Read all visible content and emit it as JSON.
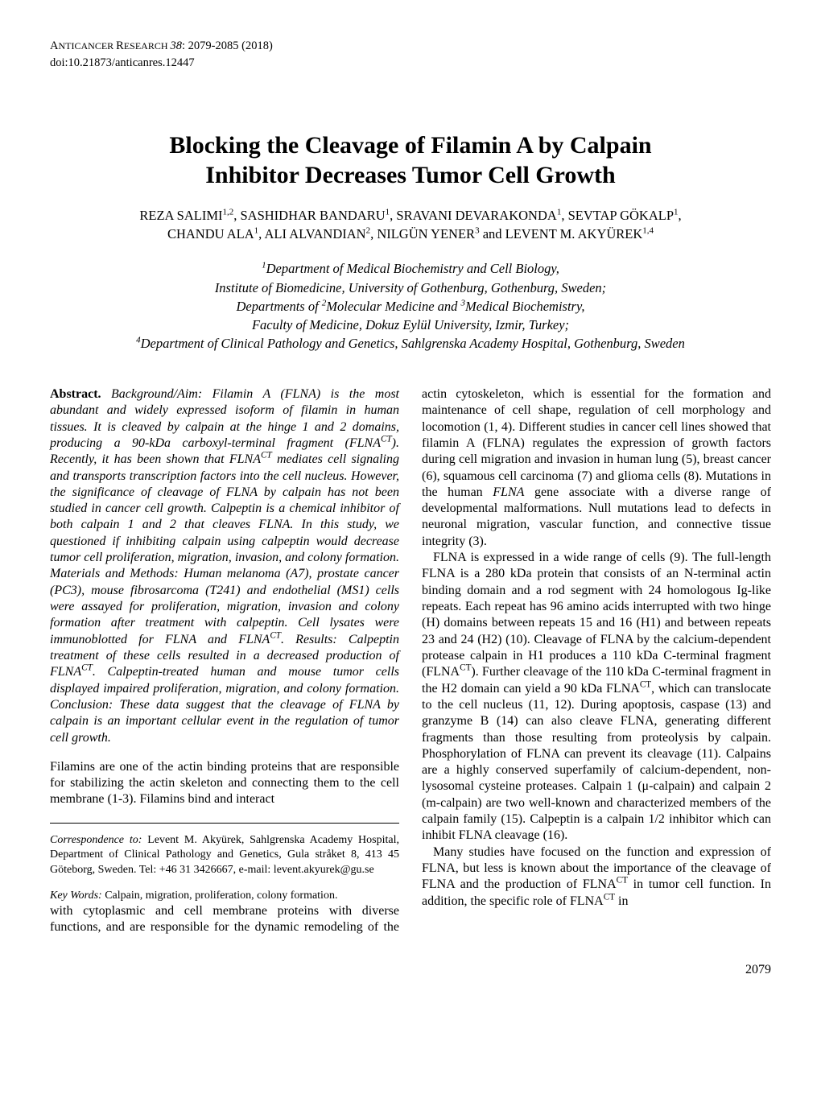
{
  "header": {
    "journal_prefix": "A",
    "journal_smallcaps": "NTICANCER ",
    "journal_prefix2": "R",
    "journal_smallcaps2": "ESEARCH ",
    "vol": "38",
    "pages_year": ": 2079-2085 (2018)",
    "doi": "doi:10.21873/anticanres.12447"
  },
  "title_line1": "Blocking the Cleavage of Filamin A by Calpain",
  "title_line2": "Inhibitor Decreases Tumor Cell Growth",
  "authors_html": "REZA SALIMI<sup>1,2</sup>, SASHIDHAR BANDARU<sup>1</sup>, SRAVANI DEVARAKONDA<sup>1</sup>, SEVTAP GÖKALP<sup>1</sup>,<br>CHANDU ALA<sup>1</sup>, ALI ALVANDIAN<sup>2</sup>, NILGÜN YENER<sup>3</sup> and LEVENT M. AKYÜREK<sup>1,4</sup>",
  "affiliations": {
    "l1_sup": "1",
    "l1": "Department of Medical Biochemistry and Cell Biology,",
    "l2": "Institute of Biomedicine, University of Gothenburg, Gothenburg, Sweden;",
    "l3_pre": "Departments of ",
    "l3_sup2": "2",
    "l3_mid": "Molecular Medicine and ",
    "l3_sup3": "3",
    "l3_end": "Medical Biochemistry,",
    "l4": "Faculty of Medicine, Dokuz Eylül University, Izmir, Turkey;",
    "l5_sup": "4",
    "l5": "Department of Clinical Pathology and Genetics, Sahlgrenska Academy Hospital, Gothenburg, Sweden"
  },
  "abstract": {
    "label": "Abstract.",
    "body_p1": " Background/Aim: Filamin A (FLNA) is the most abundant and widely expressed isoform of filamin in human tissues. It is cleaved by calpain at the hinge 1 and 2 domains, producing a 90-kDa carboxyl-terminal fragment (FLNA",
    "body_p1_sup": "CT",
    "body_p1b": "). Recently, it has been shown that FLNA",
    "body_p1_sup2": "CT",
    "body_p2": " mediates cell signaling and transports transcription factors into the cell nucleus. However, the significance of cleavage of FLNA by calpain has not been studied in cancer cell growth. Calpeptin is a chemical inhibitor of both calpain 1 and 2 that cleaves FLNA. In this study, we questioned if inhibiting calpain using calpeptin would decrease tumor cell proliferation, migration, invasion, and colony formation. Materials and Methods: Human melanoma (A7), prostate cancer (PC3), mouse fibrosarcoma (T241) and endothelial (MS1) cells were assayed for proliferation, migration, invasion and colony formation after treatment with calpeptin. Cell lysates were immunoblotted for FLNA and FLNA",
    "body_p2_sup": "CT",
    "body_p3": ". Results: Calpeptin treatment of these cells resulted in a decreased production of FLNA",
    "body_p3_sup": "CT",
    "body_p4": ". Calpeptin-treated human and mouse tumor cells displayed impaired proliferation, migration, and colony formation. Conclusion: These data suggest that the cleavage of FLNA by calpain is an important cellular event in the regulation of tumor cell growth."
  },
  "intro_p1": "Filamins are one of the actin binding proteins that are responsible for stabilizing the actin skeleton and connecting them to the cell membrane (1-3). Filamins bind and interact",
  "correspondence": {
    "label": "Correspondence to:",
    "text": " Levent M. Akyürek, Sahlgrenska Academy Hospital, Department of Clinical Pathology and Genetics, Gula stråket 8, 413 45 Göteborg, Sweden. Tel: +46 31 3426667, e-mail: levent.akyurek@gu.se"
  },
  "keywords": {
    "label": "Key Words:",
    "text": " Calpain, migration, proliferation, colony formation."
  },
  "right": {
    "p1a": "with cytoplasmic and cell membrane proteins with diverse functions, and are responsible for the dynamic remodeling of the actin cytoskeleton, which is essential for the formation and maintenance of cell shape, regulation of cell morphology and locomotion (1, 4). Different studies in cancer cell lines showed that filamin A (FLNA) regulates the expression of growth factors during cell migration and invasion in human lung (5), breast cancer (6), squamous cell carcinoma (7) and glioma cells (8). Mutations in the human ",
    "p1_flna": "FLNA",
    "p1b": " gene associate with a diverse range of developmental malformations. Null mutations lead to defects in neuronal migration, vascular function, and connective tissue integrity (3).",
    "p2a": "FLNA is expressed in a wide range of cells (9). The full-length FLNA is a 280 kDa protein that consists of an N-terminal actin binding domain and a rod segment with 24 homologous Ig-like repeats. Each repeat has 96 amino acids interrupted with two hinge (H) domains between repeats 15 and 16 (H1) and between repeats 23 and 24 (H2) (10). Cleavage of FLNA by the calcium-dependent protease calpain in H1 produces a 110 kDa C-terminal fragment (FLNA",
    "p2_sup1": "CT",
    "p2b": "). Further cleavage of the 110 kDa C-terminal fragment in the H2 domain can yield a 90 kDa FLNA",
    "p2_sup2": "CT",
    "p2c": ", which can translocate to the cell nucleus (11, 12). During apoptosis, caspase (13) and granzyme B (14) can also cleave FLNA, generating different fragments than those resulting from proteolysis by calpain. Phosphorylation of FLNA can prevent its cleavage (11). Calpains are a highly conserved superfamily of calcium-dependent, non-lysosomal cysteine proteases. Calpain 1 (μ-calpain) and calpain 2 (m-calpain) are two well-known and characterized members of the calpain family (15). Calpeptin is a calpain 1/2 inhibitor which can inhibit FLNA cleavage (16).",
    "p3a": "Many studies have focused on the function and expression of FLNA, but less is known about the importance of the cleavage of FLNA and the production of FLNA",
    "p3_sup1": "CT",
    "p3b": " in tumor cell function. In addition, the specific role of FLNA",
    "p3_sup2": "CT",
    "p3c": " in"
  },
  "page_number": "2079"
}
